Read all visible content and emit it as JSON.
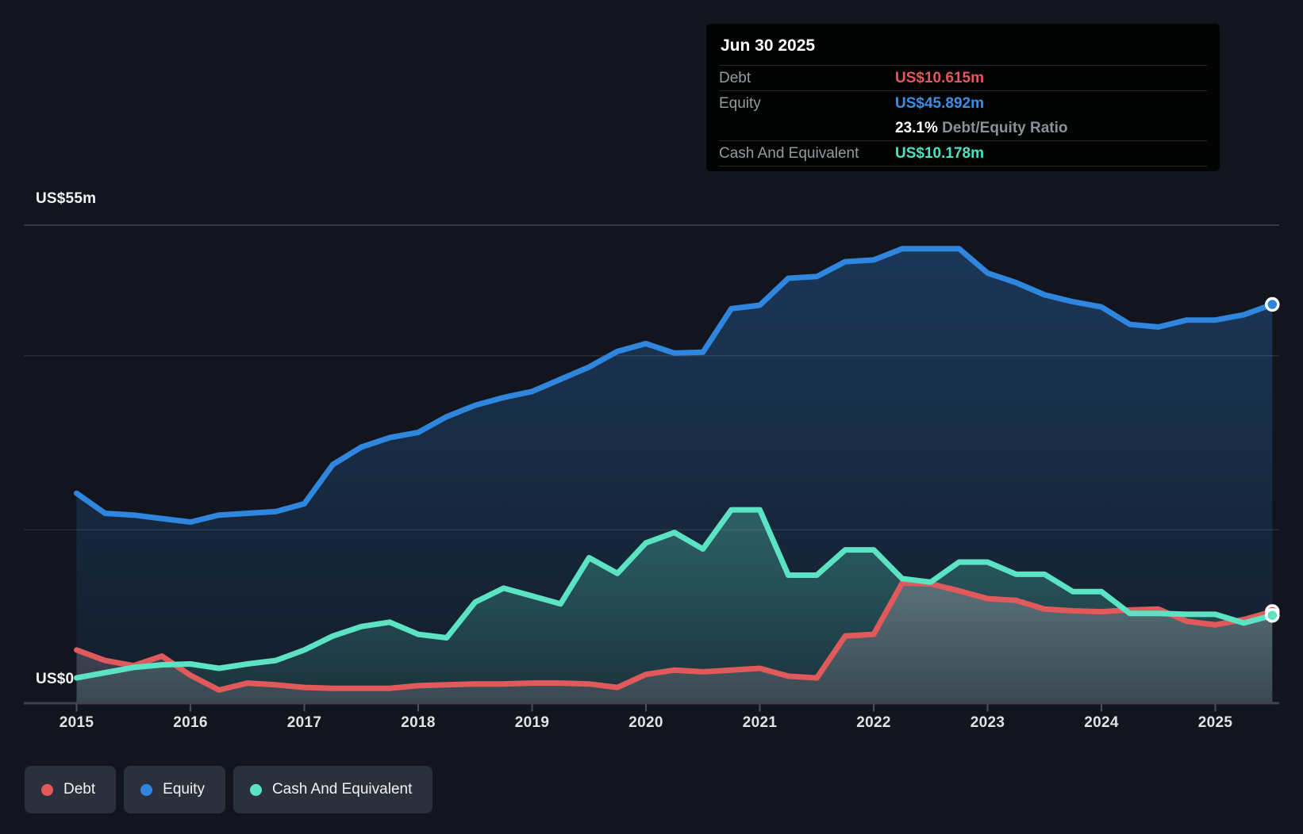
{
  "tooltip": {
    "date": "Jun 30 2025",
    "rows": [
      {
        "label": "Debt",
        "value": "US$10.615m",
        "color": "#e4575a"
      },
      {
        "label": "Equity",
        "value": "US$45.892m",
        "color": "#3b8ee6"
      },
      {
        "label": "Cash And Equivalent",
        "value": "US$10.178m",
        "color": "#4fe2c1"
      }
    ],
    "ratio_value": "23.1%",
    "ratio_label": "Debt/Equity Ratio"
  },
  "axis": {
    "y_top_label": "US$55m",
    "y_zero_label": "US$0",
    "years": [
      "2015",
      "2016",
      "2017",
      "2018",
      "2019",
      "2020",
      "2021",
      "2022",
      "2023",
      "2024",
      "2025"
    ]
  },
  "legend": {
    "items": [
      {
        "label": "Debt",
        "color": "#e4575a"
      },
      {
        "label": "Equity",
        "color": "#2f86de"
      },
      {
        "label": "Cash And Equivalent",
        "color": "#5ce3c4"
      }
    ]
  },
  "chart_data": {
    "type": "area",
    "title": "Debt to Equity History",
    "x_unit": "year",
    "ylim": [
      0,
      55
    ],
    "y_top_value": 55,
    "gridline_values": [
      55,
      40,
      20
    ],
    "x_ticks": [
      2015,
      2016,
      2017,
      2018,
      2019,
      2020,
      2021,
      2022,
      2023,
      2024,
      2025
    ],
    "x": [
      2015.0,
      2015.25,
      2015.5,
      2015.75,
      2016.0,
      2016.25,
      2016.5,
      2016.75,
      2017.0,
      2017.25,
      2017.5,
      2017.75,
      2018.0,
      2018.25,
      2018.5,
      2018.75,
      2019.0,
      2019.25,
      2019.5,
      2019.75,
      2020.0,
      2020.25,
      2020.5,
      2020.75,
      2021.0,
      2021.25,
      2021.5,
      2021.75,
      2022.0,
      2022.25,
      2022.5,
      2022.75,
      2023.0,
      2023.25,
      2023.5,
      2023.75,
      2024.0,
      2024.25,
      2024.5,
      2024.75,
      2025.0,
      2025.25,
      2025.5
    ],
    "series": [
      {
        "name": "Equity",
        "color": "#2f86de",
        "fill_top": "rgba(47,134,222,0.30)",
        "fill_bottom": "rgba(47,134,222,0.07)",
        "values": [
          24.2,
          21.9,
          21.7,
          21.3,
          20.9,
          21.7,
          21.9,
          22.1,
          23.0,
          27.5,
          29.5,
          30.6,
          31.2,
          33.0,
          34.3,
          35.2,
          35.9,
          37.3,
          38.7,
          40.5,
          41.4,
          40.3,
          40.4,
          45.4,
          45.8,
          48.9,
          49.1,
          50.8,
          51.0,
          52.3,
          52.3,
          52.3,
          49.5,
          48.4,
          47.0,
          46.2,
          45.6,
          43.6,
          43.3,
          44.1,
          44.1,
          44.7,
          45.892
        ]
      },
      {
        "name": "Cash And Equivalent",
        "color": "#5ce3c4",
        "fill_top": "rgba(92,227,196,0.30)",
        "fill_bottom": "rgba(92,227,196,0.10)",
        "values": [
          3.0,
          3.6,
          4.2,
          4.5,
          4.6,
          4.1,
          4.6,
          5.0,
          6.2,
          7.8,
          8.9,
          9.4,
          8.0,
          7.6,
          11.7,
          13.3,
          12.4,
          11.5,
          16.8,
          15.0,
          18.5,
          19.7,
          17.8,
          22.3,
          22.3,
          14.8,
          14.8,
          17.7,
          17.7,
          14.4,
          14.0,
          16.3,
          16.3,
          14.9,
          14.9,
          12.9,
          12.9,
          10.4,
          10.4,
          10.3,
          10.3,
          9.3,
          10.178
        ]
      },
      {
        "name": "Debt",
        "color": "#e05a5c",
        "fill_top": "rgba(210,185,195,0.30)",
        "fill_bottom": "rgba(210,185,195,0.16)",
        "values": [
          6.2,
          5.0,
          4.4,
          5.5,
          3.3,
          1.6,
          2.4,
          2.2,
          1.9,
          1.8,
          1.8,
          1.8,
          2.1,
          2.2,
          2.3,
          2.3,
          2.4,
          2.4,
          2.3,
          1.9,
          3.4,
          3.9,
          3.7,
          3.9,
          4.1,
          3.2,
          3.0,
          7.8,
          8.0,
          13.9,
          13.8,
          13.0,
          12.1,
          11.9,
          10.9,
          10.7,
          10.6,
          10.8,
          10.9,
          9.5,
          9.1,
          9.7,
          10.615
        ]
      }
    ],
    "end_markers": true,
    "legend_position": "bottom-left",
    "grid": true
  }
}
